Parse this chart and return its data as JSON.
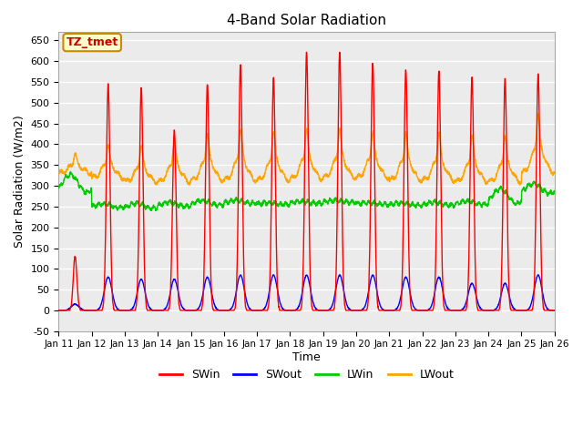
{
  "title": "4-Band Solar Radiation",
  "xlabel": "Time",
  "ylabel": "Solar Radiation (W/m2)",
  "ylim": [
    -50,
    670
  ],
  "yticks": [
    -50,
    0,
    50,
    100,
    150,
    200,
    250,
    300,
    350,
    400,
    450,
    500,
    550,
    600,
    650
  ],
  "colors": {
    "SWin": "#ff0000",
    "SWout": "#0000ff",
    "LWin": "#00cc00",
    "LWout": "#ffa500"
  },
  "plot_bg": "#ebebeb",
  "annotation_text": "TZ_tmet",
  "annotation_bg": "#ffffcc",
  "annotation_border": "#cc8800",
  "n_days": 15,
  "start_day": 11,
  "dt_per_day": 144,
  "SWin_peaks": [
    130,
    545,
    535,
    435,
    545,
    590,
    560,
    620,
    625,
    595,
    580,
    575,
    560,
    560,
    570
  ],
  "SWout_peaks": [
    15,
    80,
    75,
    75,
    80,
    85,
    85,
    85,
    85,
    85,
    80,
    80,
    65,
    65,
    85
  ],
  "LWout_night": [
    330,
    318,
    308,
    308,
    312,
    312,
    312,
    315,
    318,
    318,
    312,
    312,
    308,
    308,
    330
  ],
  "LWout_peak": [
    373,
    390,
    388,
    400,
    415,
    422,
    418,
    425,
    425,
    420,
    418,
    415,
    410,
    408,
    458
  ],
  "LWin_night": [
    285,
    248,
    246,
    250,
    253,
    258,
    255,
    258,
    260,
    255,
    253,
    253,
    255,
    258,
    282
  ],
  "LWin_day": [
    355,
    262,
    265,
    268,
    272,
    270,
    262,
    265,
    268,
    262,
    262,
    265,
    268,
    315,
    320
  ],
  "linewidth": 1.0
}
